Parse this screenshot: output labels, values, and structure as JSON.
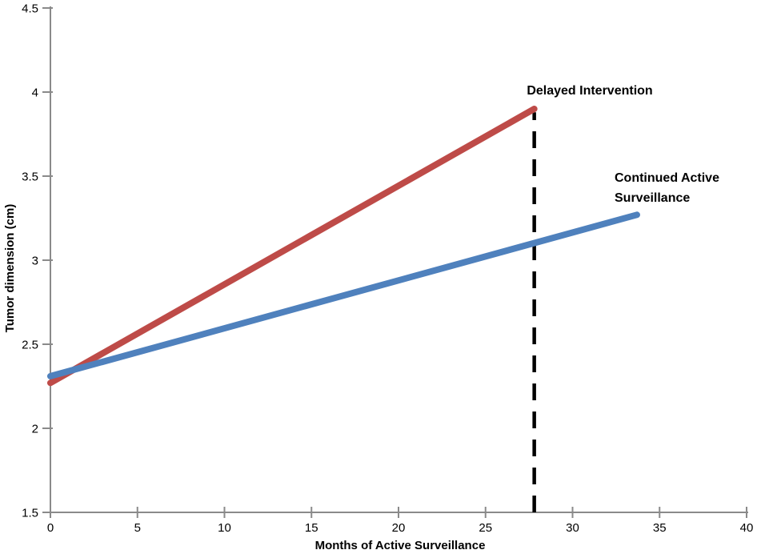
{
  "chart_data": {
    "type": "line",
    "title": "",
    "xlabel": "Months of Active Surveillance",
    "ylabel": "Tumor dimension (cm)",
    "xlim": [
      0,
      40
    ],
    "ylim": [
      1.5,
      4.5
    ],
    "xticks": [
      0,
      5,
      10,
      15,
      20,
      25,
      30,
      35,
      40
    ],
    "yticks": [
      1.5,
      2,
      2.5,
      3,
      3.5,
      4,
      4.5
    ],
    "grid": false,
    "legend_position": "inline-labels",
    "axis_color": "#8a8a8a",
    "tick_label_color": "#000000",
    "background_color": "#ffffff",
    "series": [
      {
        "name": "Delayed Intervention",
        "color": "#be4b48",
        "line_width": 8,
        "x": [
          0,
          27.8
        ],
        "y": [
          2.27,
          3.9
        ],
        "label_text": "Delayed Intervention"
      },
      {
        "name": "Continued Active Surveillance",
        "color": "#4f81bd",
        "line_width": 8,
        "x": [
          0,
          33.7
        ],
        "y": [
          2.31,
          3.27
        ],
        "label_text": "Continued Active\nSurveillance"
      }
    ],
    "annotations": [
      {
        "name": "intervention-time-marker",
        "type": "vline",
        "style": "dashed",
        "x": 27.8,
        "y_from": 1.5,
        "y_to": 3.88,
        "color": "#000000",
        "width": 4.5
      }
    ]
  }
}
